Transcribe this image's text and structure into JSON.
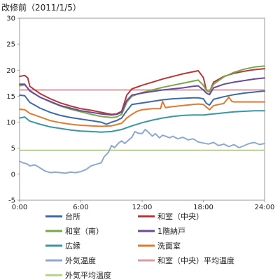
{
  "chart_data": {
    "type": "line",
    "title": "改修前（2011/1/5）",
    "xlabel": "",
    "ylabel": "",
    "xlim": [
      0,
      24
    ],
    "ylim": [
      -5,
      30
    ],
    "x_ticks": [
      0,
      6,
      12,
      18,
      24
    ],
    "x_tick_labels": [
      "0:00",
      "6:00",
      "12:00",
      "18:00",
      "24:00"
    ],
    "y_ticks": [
      -5,
      0,
      5,
      10,
      15,
      20,
      25,
      30
    ],
    "y_tick_labels": [
      "-5",
      "0",
      "5",
      "10",
      "15",
      "20",
      "25",
      "30"
    ],
    "grid": false,
    "legend_position": "bottom",
    "series": [
      {
        "name": "台所",
        "color": "#3e6aa4",
        "x": [
          0,
          0.5,
          1,
          2,
          3,
          4,
          5,
          6,
          7,
          8,
          8.5,
          9,
          9.5,
          10,
          10.5,
          11,
          12,
          13,
          14,
          15,
          16,
          17,
          17.5,
          18,
          18.3,
          18.6,
          19,
          20,
          21,
          22,
          23,
          24
        ],
        "y": [
          15.2,
          15.1,
          13.8,
          12.7,
          11.9,
          11.3,
          10.9,
          10.6,
          10.3,
          10.0,
          9.6,
          10.0,
          10.3,
          10.8,
          12.2,
          13.4,
          13.7,
          14.0,
          14.3,
          14.5,
          14.6,
          14.7,
          14.7,
          14.5,
          13.6,
          13.3,
          14.4,
          14.9,
          15.3,
          15.6,
          15.8,
          16.0
        ]
      },
      {
        "name": "和室（中央）",
        "color": "#b5383a",
        "x": [
          0,
          0.5,
          0.8,
          1,
          2,
          3,
          4,
          5,
          6,
          7,
          8,
          9,
          9.5,
          10,
          10.5,
          11,
          12,
          13,
          14,
          15,
          16,
          17,
          17.5,
          18,
          18.3,
          18.6,
          19,
          20,
          21,
          22,
          23,
          24
        ],
        "y": [
          18.8,
          19.0,
          18.5,
          16.9,
          15.5,
          14.5,
          13.7,
          13.1,
          12.6,
          12.3,
          11.9,
          11.5,
          11.6,
          12.1,
          15.2,
          16.4,
          17.1,
          17.7,
          18.3,
          18.8,
          19.3,
          19.7,
          19.9,
          18.6,
          16.1,
          15.8,
          17.7,
          18.8,
          19.4,
          19.8,
          20.1,
          20.3
        ]
      },
      {
        "name": "和室（南）",
        "color": "#78a84a",
        "x": [
          0,
          0.5,
          1,
          2,
          3,
          4,
          5,
          6,
          7,
          8,
          9,
          9.5,
          10,
          10.5,
          11,
          12,
          13,
          14,
          15,
          16,
          17,
          17.5,
          18,
          18.3,
          18.6,
          19,
          20,
          21,
          22,
          23,
          24
        ],
        "y": [
          17.0,
          17.2,
          16.1,
          14.8,
          13.9,
          13.1,
          12.5,
          12.0,
          11.5,
          11.1,
          10.9,
          11.0,
          11.5,
          13.8,
          15.0,
          15.7,
          16.2,
          16.7,
          17.1,
          17.5,
          17.9,
          18.1,
          17.1,
          16.1,
          15.8,
          17.3,
          18.7,
          19.6,
          20.2,
          20.6,
          20.8
        ]
      },
      {
        "name": "1階納戸",
        "color": "#6b4a9a",
        "x": [
          0,
          0.5,
          1,
          2,
          3,
          4,
          5,
          6,
          7,
          8,
          9,
          9.5,
          10,
          10.5,
          11,
          12,
          13,
          14,
          15,
          16,
          17,
          17.5,
          18,
          18.3,
          18.6,
          19,
          20,
          21,
          22,
          23,
          24
        ],
        "y": [
          17.3,
          17.3,
          16.0,
          14.8,
          14.0,
          13.2,
          12.7,
          12.2,
          11.9,
          11.6,
          11.4,
          11.5,
          11.9,
          14.2,
          15.2,
          15.6,
          15.9,
          16.2,
          16.4,
          16.6,
          16.9,
          17.0,
          16.2,
          15.6,
          15.3,
          16.6,
          17.3,
          17.7,
          18.0,
          18.3,
          18.5
        ]
      },
      {
        "name": "広縁",
        "color": "#3a95a4",
        "x": [
          0,
          0.5,
          1,
          2,
          3,
          4,
          5,
          6,
          7,
          8,
          9,
          10,
          11,
          12,
          13,
          14,
          15,
          16,
          17,
          18,
          19,
          20,
          21,
          22,
          23,
          24
        ],
        "y": [
          10.8,
          11.0,
          10.2,
          9.6,
          9.1,
          8.8,
          8.5,
          8.3,
          8.2,
          8.1,
          8.2,
          8.6,
          9.3,
          9.9,
          10.4,
          10.8,
          11.1,
          11.3,
          11.4,
          11.4,
          11.6,
          11.8,
          12.0,
          12.1,
          12.2,
          12.2
        ]
      },
      {
        "name": "洗面室",
        "color": "#e07a30",
        "x": [
          0,
          0.5,
          1,
          2,
          3,
          4,
          5,
          6,
          7,
          8,
          9,
          10,
          10.5,
          11,
          11.5,
          12,
          13,
          13.8,
          14,
          14.3,
          15,
          16,
          17,
          17.5,
          18,
          18.6,
          19,
          20,
          20.5,
          20.8,
          21,
          22,
          23,
          24
        ],
        "y": [
          12.5,
          12.4,
          11.7,
          11.0,
          10.3,
          9.9,
          9.6,
          9.4,
          9.3,
          9.2,
          9.3,
          9.8,
          10.8,
          11.5,
          12.1,
          12.4,
          12.6,
          12.6,
          14.0,
          12.8,
          13.0,
          13.2,
          13.4,
          13.5,
          13.4,
          12.4,
          13.2,
          13.6,
          14.8,
          14.0,
          13.9,
          13.9,
          13.9,
          13.9
        ]
      },
      {
        "name": "外気温度",
        "color": "#8fa9cc",
        "x": [
          0,
          0.3,
          0.7,
          1,
          1.5,
          2,
          2.5,
          3,
          3.5,
          4,
          4.5,
          5,
          5.5,
          6,
          6.5,
          7,
          7.5,
          8,
          8.3,
          8.7,
          9,
          9.3,
          9.7,
          10,
          10.3,
          10.7,
          11,
          11.3,
          11.6,
          12,
          12.3,
          12.6,
          13,
          13.3,
          13.7,
          14,
          14.3,
          14.7,
          15,
          15.5,
          16,
          16.5,
          17,
          17.5,
          18,
          18.5,
          19,
          19.5,
          20,
          20.5,
          21,
          21.5,
          22,
          22.5,
          23,
          23.5,
          24
        ],
        "y": [
          2.5,
          2.2,
          2.0,
          1.6,
          1.8,
          1.2,
          0.6,
          0.3,
          0.4,
          0.3,
          0.2,
          0.4,
          0.3,
          0.5,
          0.9,
          1.6,
          1.9,
          2.2,
          3.4,
          4.2,
          5.5,
          5.1,
          6.0,
          6.4,
          5.9,
          6.6,
          7.1,
          8.2,
          7.9,
          7.8,
          8.6,
          8.1,
          7.3,
          7.8,
          7.0,
          7.5,
          7.3,
          7.0,
          7.3,
          6.8,
          7.1,
          6.6,
          6.8,
          6.2,
          6.0,
          5.8,
          6.1,
          5.5,
          5.8,
          5.3,
          5.7,
          5.1,
          5.5,
          5.9,
          6.1,
          5.7,
          5.9
        ]
      },
      {
        "name": "和室（中央）平均温度",
        "color": "#d89ca6",
        "x": [
          0,
          24
        ],
        "y": [
          16.2,
          16.2
        ]
      },
      {
        "name": "外気平均温度",
        "color": "#b6d18a",
        "x": [
          0,
          24
        ],
        "y": [
          4.6,
          4.6
        ]
      }
    ]
  }
}
